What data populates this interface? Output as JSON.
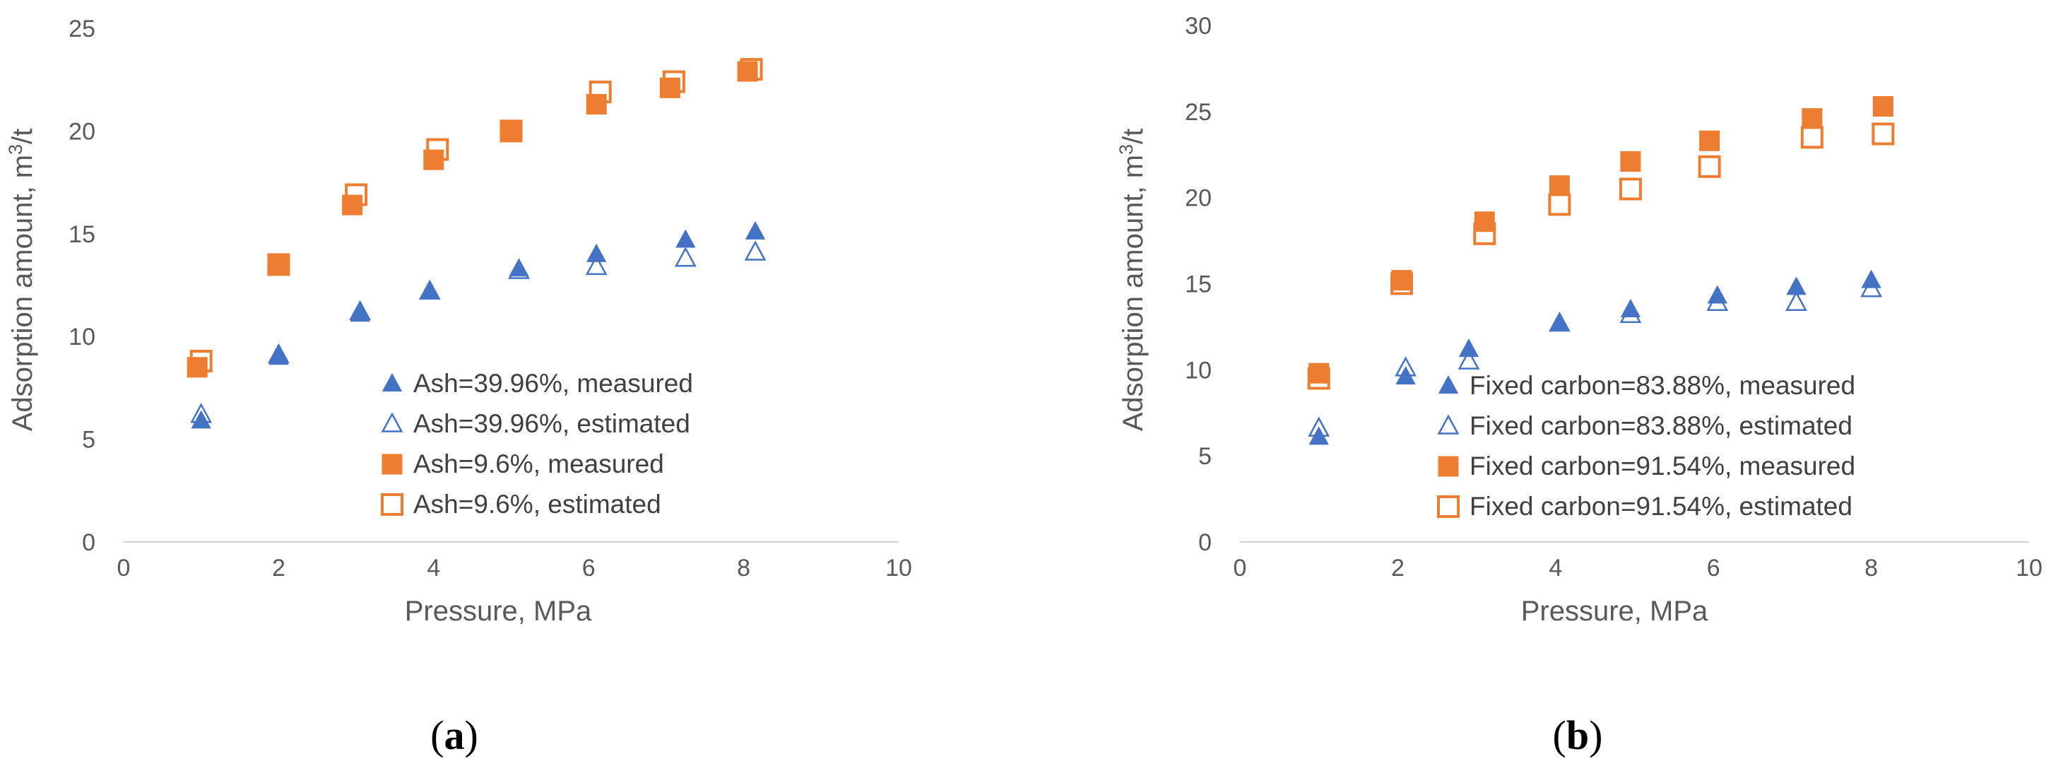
{
  "colors": {
    "blue": "#4472c4",
    "orange": "#ed7d31",
    "axis_text": "#595959"
  },
  "chart_data": [
    {
      "type": "scatter",
      "panel": "a",
      "xlabel": "Pressure, MPa",
      "ylabel": "Adsorption amount, m³/t",
      "ylabel_prefix": "Adsorption amount, m",
      "ylabel_sup": "3",
      "ylabel_suffix": "/t",
      "xlim": [
        0,
        10
      ],
      "ylim": [
        0,
        25
      ],
      "xticks": [
        "0",
        "2",
        "4",
        "6",
        "8",
        "10"
      ],
      "yticks": [
        "0",
        "5",
        "10",
        "15",
        "20",
        "25"
      ],
      "legend_position": "lower-right",
      "series": [
        {
          "name": "Ash=39.96%, measured",
          "marker": "triangle-filled",
          "color": "#4472c4",
          "x": [
            1.0,
            2.0,
            3.05,
            3.95,
            5.1,
            6.1,
            7.25,
            8.15
          ],
          "y": [
            5.9,
            9.0,
            11.1,
            12.2,
            13.3,
            14.0,
            14.7,
            15.1
          ]
        },
        {
          "name": "Ash=39.96%, estimated",
          "marker": "triangle-open",
          "color": "#4472c4",
          "x": [
            1.0,
            2.0,
            3.05,
            3.95,
            5.1,
            6.1,
            7.25,
            8.15
          ],
          "y": [
            6.2,
            9.1,
            11.2,
            12.2,
            13.2,
            13.4,
            13.8,
            14.1
          ]
        },
        {
          "name": "Ash=9.6%, measured",
          "marker": "square-filled",
          "color": "#ed7d31",
          "x": [
            0.95,
            2.0,
            2.95,
            4.0,
            5.0,
            6.1,
            7.05,
            8.05
          ],
          "y": [
            8.5,
            13.5,
            16.4,
            18.6,
            20.0,
            21.3,
            22.1,
            22.9
          ]
        },
        {
          "name": "Ash=9.6%, estimated",
          "marker": "square-open",
          "color": "#ed7d31",
          "x": [
            1.0,
            2.0,
            3.0,
            4.05,
            5.0,
            6.15,
            7.1,
            8.1
          ],
          "y": [
            8.8,
            13.5,
            16.9,
            19.1,
            20.0,
            21.9,
            22.4,
            23.0
          ]
        }
      ]
    },
    {
      "type": "scatter",
      "panel": "b",
      "xlabel": "Pressure, MPa",
      "ylabel": "Adsorption amount, m³/t",
      "ylabel_prefix": "Adsorption amount, m",
      "ylabel_sup": "3",
      "ylabel_suffix": "/t",
      "xlim": [
        0,
        10
      ],
      "ylim": [
        0,
        30
      ],
      "xticks": [
        "0",
        "2",
        "4",
        "6",
        "8",
        "10"
      ],
      "yticks": [
        "0",
        "5",
        "10",
        "15",
        "20",
        "25",
        "30"
      ],
      "legend_position": "lower-right",
      "series": [
        {
          "name": "Fixed carbon=83.88%, measured",
          "marker": "triangle-filled",
          "color": "#4472c4",
          "x": [
            1.0,
            2.1,
            2.9,
            4.05,
            4.95,
            6.05,
            7.05,
            8.0
          ],
          "y": [
            6.1,
            9.6,
            11.2,
            12.7,
            13.5,
            14.3,
            14.8,
            15.2
          ]
        },
        {
          "name": "Fixed carbon=83.88%, estimated",
          "marker": "triangle-open",
          "color": "#4472c4",
          "x": [
            1.0,
            2.1,
            2.9,
            4.05,
            4.95,
            6.05,
            7.05,
            8.0
          ],
          "y": [
            6.6,
            10.1,
            10.5,
            12.7,
            13.2,
            13.9,
            13.9,
            14.7
          ]
        },
        {
          "name": "Fixed carbon=91.54%, measured",
          "marker": "square-filled",
          "color": "#ed7d31",
          "x": [
            1.0,
            2.05,
            3.1,
            4.05,
            4.95,
            5.95,
            7.25,
            8.15
          ],
          "y": [
            9.8,
            15.2,
            18.6,
            20.7,
            22.1,
            23.3,
            24.6,
            25.3
          ]
        },
        {
          "name": "Fixed carbon=91.54%, estimated",
          "marker": "square-open",
          "color": "#ed7d31",
          "x": [
            1.0,
            2.05,
            3.1,
            4.05,
            4.95,
            5.95,
            7.25,
            8.15
          ],
          "y": [
            9.5,
            15.0,
            17.9,
            19.6,
            20.5,
            21.8,
            23.5,
            23.7
          ]
        }
      ]
    }
  ],
  "panel_labels": [
    {
      "open": "(",
      "letter": "a",
      "close": ")"
    },
    {
      "open": "(",
      "letter": "b",
      "close": ")"
    }
  ]
}
